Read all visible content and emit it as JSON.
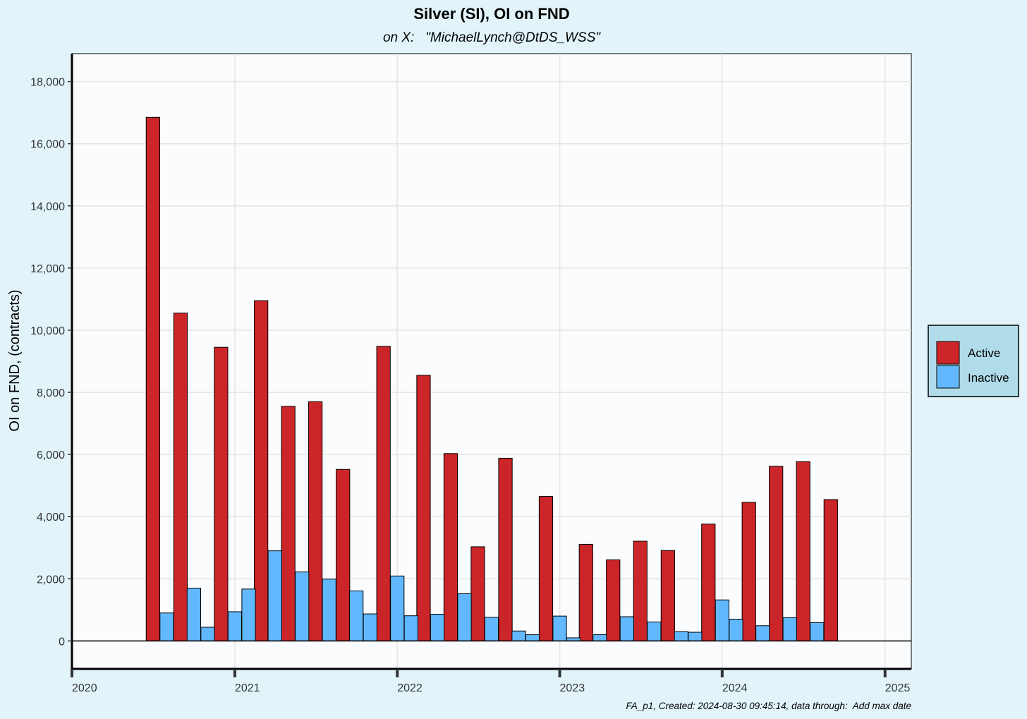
{
  "chart_data": {
    "type": "bar",
    "title": "Silver (SI), OI on FND",
    "subtitle": "on X:   \"MichaelLynch@DtDS_WSS\"",
    "ylabel": "OI on FND, (contracts)",
    "xlabel": "",
    "caption": "FA_p1, Created: 2024-08-30 09:45:14, data through:  Add max date",
    "ylim": [
      -900,
      18900
    ],
    "xlim": [
      "2020-01-01",
      "2025-03-01"
    ],
    "y_ticks": [
      0,
      2000,
      4000,
      6000,
      8000,
      10000,
      12000,
      14000,
      16000,
      18000
    ],
    "y_tick_labels": [
      "0",
      "2,000",
      "4,000",
      "6,000",
      "8,000",
      "10,000",
      "12,000",
      "14,000",
      "16,000",
      "18,000"
    ],
    "x_ticks": [
      "2020-01-01",
      "2021-01-01",
      "2022-01-01",
      "2023-01-01",
      "2024-01-01",
      "2025-01-01"
    ],
    "x_tick_labels": [
      "2020",
      "2021",
      "2022",
      "2023",
      "2024",
      "2025"
    ],
    "grid": true,
    "legend_position": "right",
    "colors": {
      "Active": "#cc2529",
      "Inactive": "#62b8fc"
    },
    "series": [
      {
        "name": "Active",
        "x": [
          "2020-07-01",
          "2020-09-01",
          "2020-12-01",
          "2021-03-01",
          "2021-05-01",
          "2021-07-01",
          "2021-09-01",
          "2021-12-01",
          "2022-03-01",
          "2022-05-01",
          "2022-07-01",
          "2022-09-01",
          "2022-12-01",
          "2023-03-01",
          "2023-05-01",
          "2023-07-01",
          "2023-09-01",
          "2023-12-01",
          "2024-03-01",
          "2024-05-01",
          "2024-07-01",
          "2024-09-01"
        ],
        "values": [
          16850,
          10550,
          9450,
          10950,
          7550,
          7700,
          5520,
          9480,
          8550,
          6030,
          3030,
          5880,
          4650,
          3110,
          2610,
          3210,
          2910,
          3760,
          4460,
          5620,
          5770,
          4550
        ]
      },
      {
        "name": "Inactive",
        "x": [
          "2020-08-01",
          "2020-10-01",
          "2020-11-01",
          "2021-01-01",
          "2021-02-01",
          "2021-04-01",
          "2021-06-01",
          "2021-08-01",
          "2021-10-01",
          "2021-11-01",
          "2022-01-01",
          "2022-02-01",
          "2022-04-01",
          "2022-06-01",
          "2022-08-01",
          "2022-10-01",
          "2022-11-01",
          "2023-01-01",
          "2023-02-01",
          "2023-04-01",
          "2023-06-01",
          "2023-08-01",
          "2023-10-01",
          "2023-11-01",
          "2024-01-01",
          "2024-02-01",
          "2024-04-01",
          "2024-06-01",
          "2024-08-01"
        ],
        "values": [
          900,
          1700,
          440,
          940,
          1670,
          2900,
          2220,
          1990,
          1610,
          870,
          2090,
          810,
          860,
          1520,
          760,
          320,
          200,
          800,
          100,
          200,
          780,
          610,
          300,
          280,
          1320,
          700,
          490,
          750,
          590
        ]
      }
    ]
  }
}
